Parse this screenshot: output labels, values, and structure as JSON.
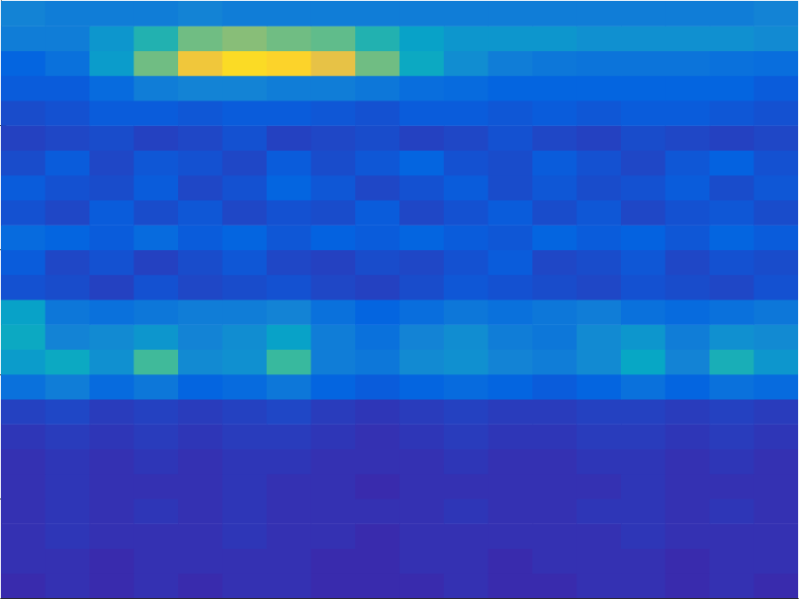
{
  "chart_data": {
    "type": "heatmap",
    "xlim": [
      0,
      9
    ],
    "xticks": [
      1,
      2,
      3,
      4,
      5,
      6,
      7,
      8
    ],
    "ylim": [
      0,
      4.8
    ],
    "yticks": [
      0.8,
      1.8,
      2.8,
      3.8
    ],
    "tick_labels": false,
    "zlim": [
      0.1,
      1
    ],
    "x": [
      0.25,
      0.75,
      1.25,
      1.75,
      2.25,
      2.75,
      3.25,
      3.75,
      4.25,
      4.75,
      5.25,
      5.75,
      6.25,
      6.75,
      7.25,
      7.75,
      8.25,
      8.75
    ],
    "y": [
      0.1,
      0.3,
      0.5,
      0.7,
      0.9,
      1.1,
      1.3,
      1.5,
      1.7,
      1.9,
      2.1,
      2.3,
      2.5,
      2.7,
      2.9,
      3.1,
      3.3,
      3.5,
      3.7,
      3.9,
      4.1,
      4.3,
      4.5,
      4.7
    ],
    "cells": [
      [
        0.11,
        0.12,
        0.11,
        0.12,
        0.11,
        0.12,
        0.12,
        0.11,
        0.11,
        0.11,
        0.12,
        0.11,
        0.11,
        0.12,
        0.12,
        0.11,
        0.12,
        0.11
      ],
      [
        0.12,
        0.12,
        0.11,
        0.12,
        0.12,
        0.12,
        0.12,
        0.11,
        0.11,
        0.12,
        0.12,
        0.11,
        0.12,
        0.12,
        0.12,
        0.11,
        0.12,
        0.12
      ],
      [
        0.12,
        0.13,
        0.12,
        0.12,
        0.12,
        0.13,
        0.12,
        0.12,
        0.11,
        0.12,
        0.12,
        0.12,
        0.12,
        0.12,
        0.13,
        0.12,
        0.12,
        0.12
      ],
      [
        0.12,
        0.13,
        0.12,
        0.13,
        0.12,
        0.13,
        0.12,
        0.12,
        0.12,
        0.12,
        0.13,
        0.12,
        0.12,
        0.13,
        0.13,
        0.12,
        0.13,
        0.12
      ],
      [
        0.12,
        0.13,
        0.12,
        0.12,
        0.12,
        0.13,
        0.12,
        0.12,
        0.11,
        0.12,
        0.12,
        0.12,
        0.12,
        0.12,
        0.13,
        0.12,
        0.12,
        0.12
      ],
      [
        0.12,
        0.13,
        0.12,
        0.13,
        0.12,
        0.13,
        0.13,
        0.12,
        0.12,
        0.12,
        0.13,
        0.12,
        0.12,
        0.13,
        0.13,
        0.12,
        0.13,
        0.12
      ],
      [
        0.13,
        0.14,
        0.13,
        0.14,
        0.13,
        0.14,
        0.14,
        0.13,
        0.12,
        0.13,
        0.14,
        0.13,
        0.13,
        0.14,
        0.14,
        0.13,
        0.14,
        0.13
      ],
      [
        0.15,
        0.16,
        0.14,
        0.15,
        0.14,
        0.15,
        0.16,
        0.14,
        0.13,
        0.14,
        0.15,
        0.14,
        0.14,
        0.15,
        0.15,
        0.14,
        0.15,
        0.14
      ],
      [
        0.26,
        0.3,
        0.24,
        0.28,
        0.22,
        0.24,
        0.28,
        0.22,
        0.2,
        0.22,
        0.24,
        0.22,
        0.2,
        0.22,
        0.26,
        0.22,
        0.26,
        0.24
      ],
      [
        0.4,
        0.45,
        0.36,
        0.56,
        0.34,
        0.36,
        0.55,
        0.3,
        0.28,
        0.34,
        0.36,
        0.32,
        0.3,
        0.34,
        0.44,
        0.32,
        0.48,
        0.38
      ],
      [
        0.45,
        0.32,
        0.34,
        0.38,
        0.32,
        0.35,
        0.42,
        0.3,
        0.26,
        0.32,
        0.35,
        0.3,
        0.28,
        0.34,
        0.38,
        0.3,
        0.36,
        0.34
      ],
      [
        0.42,
        0.28,
        0.26,
        0.28,
        0.3,
        0.3,
        0.32,
        0.26,
        0.22,
        0.25,
        0.28,
        0.26,
        0.28,
        0.3,
        0.26,
        0.24,
        0.26,
        0.28
      ],
      [
        0.18,
        0.17,
        0.15,
        0.18,
        0.16,
        0.17,
        0.18,
        0.16,
        0.15,
        0.17,
        0.19,
        0.18,
        0.17,
        0.16,
        0.18,
        0.17,
        0.16,
        0.18
      ],
      [
        0.2,
        0.16,
        0.18,
        0.15,
        0.17,
        0.19,
        0.16,
        0.15,
        0.17,
        0.16,
        0.18,
        0.2,
        0.16,
        0.17,
        0.19,
        0.16,
        0.18,
        0.17
      ],
      [
        0.24,
        0.22,
        0.2,
        0.24,
        0.2,
        0.22,
        0.19,
        0.21,
        0.2,
        0.22,
        0.2,
        0.19,
        0.22,
        0.2,
        0.21,
        0.19,
        0.22,
        0.2
      ],
      [
        0.18,
        0.16,
        0.2,
        0.17,
        0.19,
        0.16,
        0.18,
        0.17,
        0.2,
        0.16,
        0.18,
        0.2,
        0.17,
        0.19,
        0.16,
        0.18,
        0.19,
        0.17
      ],
      [
        0.2,
        0.18,
        0.17,
        0.2,
        0.16,
        0.18,
        0.22,
        0.19,
        0.16,
        0.18,
        0.2,
        0.17,
        0.19,
        0.17,
        0.18,
        0.2,
        0.17,
        0.19
      ],
      [
        0.17,
        0.2,
        0.16,
        0.19,
        0.18,
        0.16,
        0.2,
        0.17,
        0.19,
        0.22,
        0.18,
        0.17,
        0.2,
        0.18,
        0.16,
        0.19,
        0.21,
        0.18
      ],
      [
        0.15,
        0.16,
        0.17,
        0.15,
        0.16,
        0.18,
        0.15,
        0.16,
        0.17,
        0.15,
        0.16,
        0.18,
        0.16,
        0.15,
        0.17,
        0.16,
        0.15,
        0.16
      ],
      [
        0.17,
        0.18,
        0.2,
        0.2,
        0.19,
        0.2,
        0.2,
        0.19,
        0.18,
        0.2,
        0.2,
        0.19,
        0.2,
        0.19,
        0.2,
        0.2,
        0.19,
        0.18
      ],
      [
        0.2,
        0.2,
        0.24,
        0.3,
        0.32,
        0.32,
        0.3,
        0.3,
        0.28,
        0.25,
        0.24,
        0.22,
        0.22,
        0.22,
        0.22,
        0.22,
        0.22,
        0.2
      ],
      [
        0.22,
        0.26,
        0.4,
        0.62,
        0.85,
        0.92,
        0.9,
        0.82,
        0.62,
        0.45,
        0.35,
        0.3,
        0.28,
        0.27,
        0.27,
        0.27,
        0.26,
        0.25
      ],
      [
        0.3,
        0.3,
        0.38,
        0.5,
        0.62,
        0.65,
        0.62,
        0.6,
        0.5,
        0.42,
        0.38,
        0.38,
        0.38,
        0.36,
        0.36,
        0.36,
        0.36,
        0.34
      ],
      [
        0.32,
        0.3,
        0.3,
        0.3,
        0.32,
        0.3,
        0.3,
        0.3,
        0.3,
        0.3,
        0.3,
        0.3,
        0.3,
        0.3,
        0.3,
        0.3,
        0.3,
        0.32
      ]
    ]
  }
}
